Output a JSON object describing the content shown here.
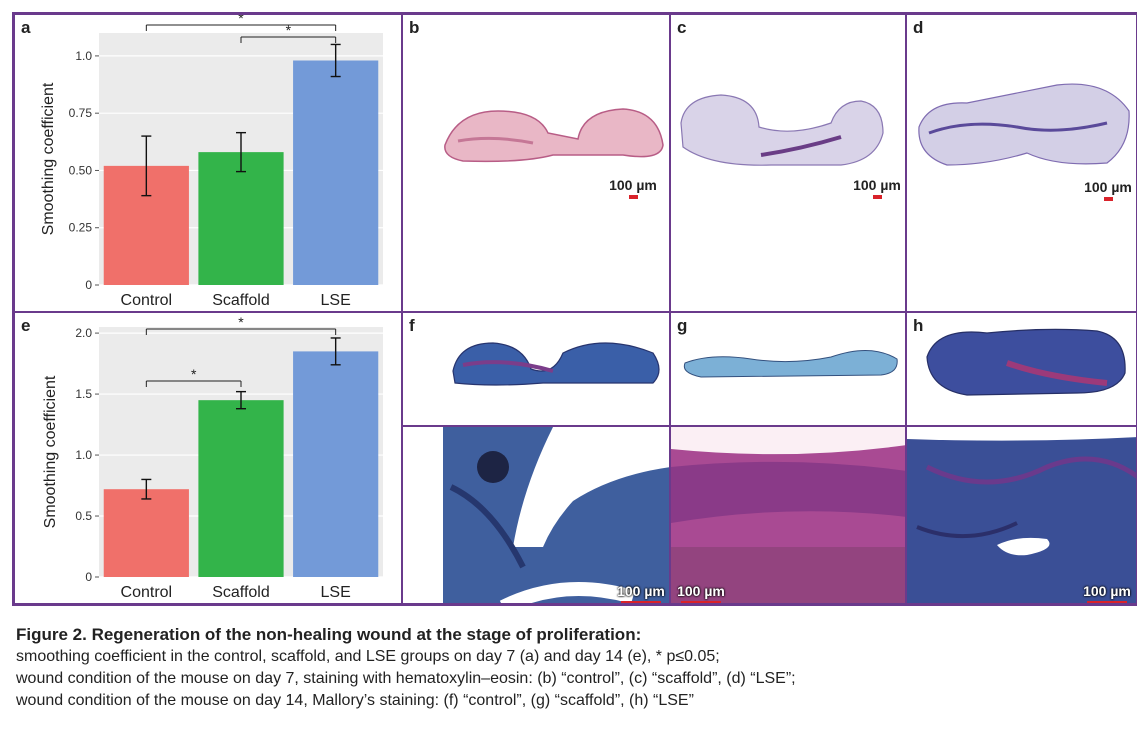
{
  "panels": {
    "a": "a",
    "b": "b",
    "c": "c",
    "d": "d",
    "e": "e",
    "f": "f",
    "g": "g",
    "h": "h"
  },
  "scale_bar_label": "100 µm",
  "colors": {
    "frame": "#6a3a8c",
    "control": "#f0706a",
    "scaffold": "#33b44a",
    "lse": "#739ad8",
    "plot_bg": "#ebebeb",
    "scale_bar": "#d9222a"
  },
  "chart_data": [
    {
      "panel": "a",
      "type": "bar",
      "ylabel": "Smoothing coefficient",
      "categories": [
        "Control",
        "Scaffold",
        "LSE"
      ],
      "values": [
        0.52,
        0.58,
        0.98
      ],
      "errors": [
        0.13,
        0.085,
        0.07
      ],
      "ylim": [
        0,
        1.1
      ],
      "yticks": [
        0,
        0.25,
        0.5,
        0.75,
        1.0
      ],
      "ytick_labels": [
        "0",
        "0.25",
        "0.50",
        "0.75",
        "1.0"
      ],
      "significance": [
        {
          "from": 0,
          "to": 2,
          "label": "*"
        },
        {
          "from": 1,
          "to": 2,
          "label": "*"
        }
      ],
      "grid": true
    },
    {
      "panel": "e",
      "type": "bar",
      "ylabel": "Smoothing coefficient",
      "categories": [
        "Control",
        "Scaffold",
        "LSE"
      ],
      "values": [
        0.72,
        1.45,
        1.85
      ],
      "errors": [
        0.08,
        0.07,
        0.11
      ],
      "ylim": [
        0,
        2.05
      ],
      "yticks": [
        0,
        0.5,
        1.0,
        1.5,
        2.0
      ],
      "ytick_labels": [
        "0",
        "0.5",
        "1.0",
        "1.5",
        "2.0"
      ],
      "significance": [
        {
          "from": 0,
          "to": 2,
          "label": "*"
        },
        {
          "from": 0,
          "to": 1,
          "label": "*"
        }
      ],
      "grid": true
    }
  ],
  "caption": {
    "title": "Figure 2. Regeneration of the non-healing wound at the stage of proliferation:",
    "line1": "smoothing coefficient in the control, scaffold, and LSE groups on day 7 (a) and day 14 (e), * p≤0.05;",
    "line2": "wound condition of the mouse on day 7, staining with hematoxylin–eosin: (b) “control”, (c) “scaffold”, (d) “LSE”;",
    "line3": "wound condition of the mouse on day 14, Mallory’s staining: (f) “control”, (g) “scaffold”, (h) “LSE”"
  }
}
